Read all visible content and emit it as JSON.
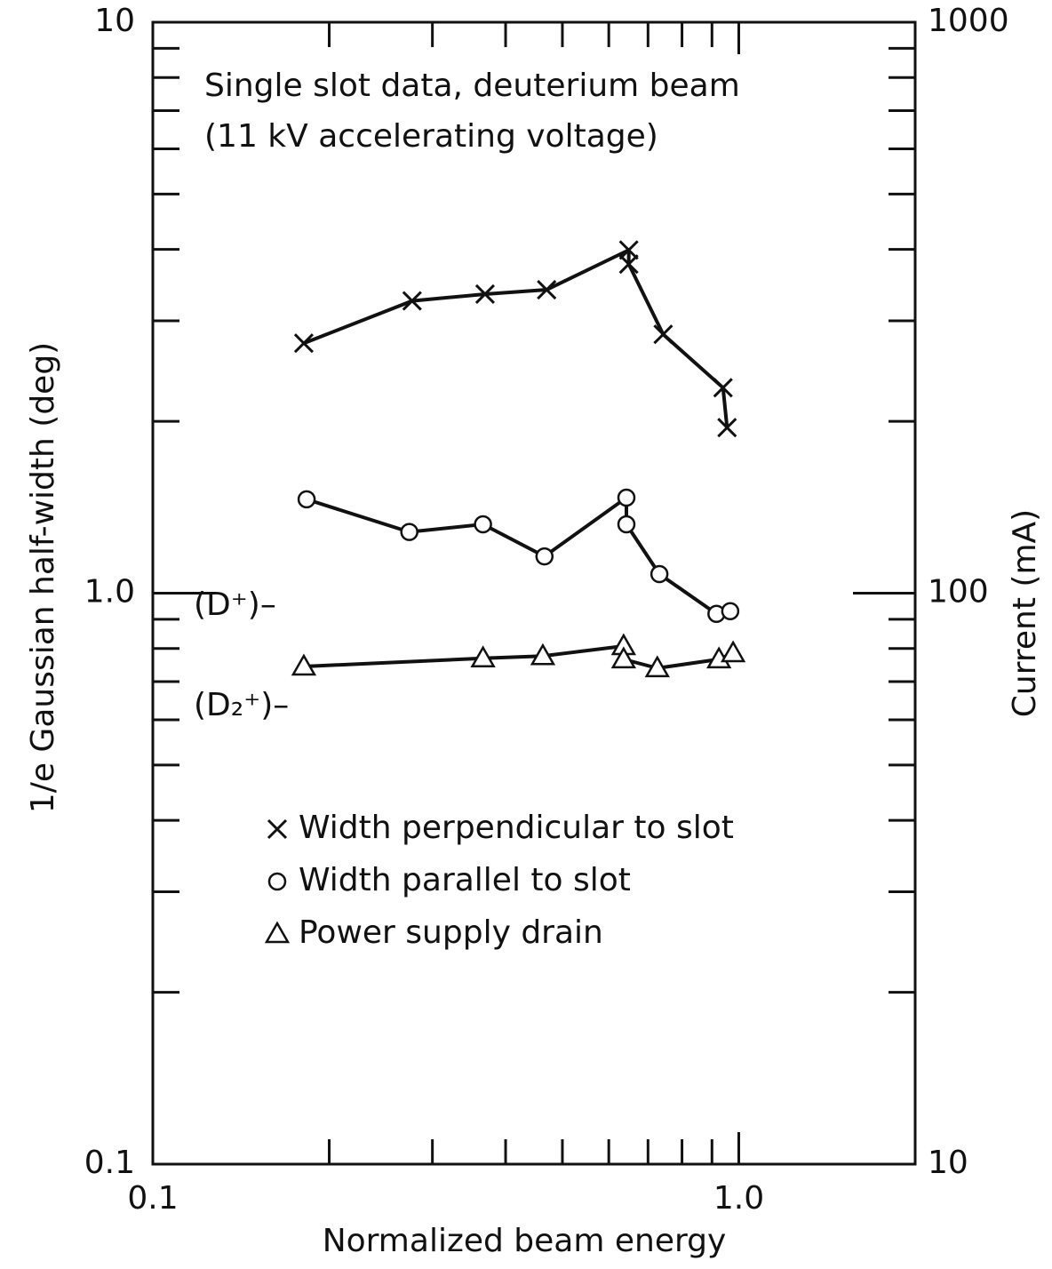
{
  "chart_data": {
    "type": "line",
    "annotations": [
      "Single slot data, deuterium beam",
      "(11 kV accelerating voltage)",
      "(D⁺)–",
      "(D₂⁺)–"
    ],
    "xlabel": "Normalized beam energy",
    "ylabel": "1/e Gaussian half-width (deg)",
    "y2label": "Current (mA)",
    "xscale": "log",
    "yscale": "log",
    "xlim": [
      0.1,
      2
    ],
    "ylim": [
      0.1,
      10
    ],
    "y2lim": [
      10,
      1000
    ],
    "xticks": [
      0.1,
      {
        "value": 1,
        "label": "1.0"
      }
    ],
    "xminorticks": [
      0.2,
      0.3,
      0.4,
      0.5,
      0.6,
      0.7,
      0.8,
      0.9,
      2
    ],
    "yticks": [
      0.1,
      {
        "value": 1,
        "label": "1.0"
      },
      10
    ],
    "yminorticks": [
      0.2,
      0.3,
      0.4,
      0.5,
      0.6,
      0.7,
      0.8,
      0.9,
      2,
      3,
      4,
      5,
      6,
      7,
      8,
      9
    ],
    "y2ticks": [
      10,
      100,
      1000
    ],
    "series": [
      {
        "name": "Width perpendicular to slot",
        "marker": "x",
        "color": "#111",
        "x": [
          0.181,
          0.277,
          0.369,
          0.47,
          0.649,
          0.649,
          0.743,
          0.94,
          0.955
        ],
        "values": [
          2.74,
          3.25,
          3.34,
          3.4,
          3.99,
          3.77,
          2.84,
          2.29,
          1.95
        ]
      },
      {
        "name": "Width parallel to slot",
        "marker": "o",
        "color": "#111",
        "x": [
          0.183,
          0.274,
          0.366,
          0.466,
          0.643,
          0.643,
          0.732,
          0.916,
          0.967
        ],
        "values": [
          1.46,
          1.28,
          1.32,
          1.16,
          1.47,
          1.32,
          1.08,
          0.92,
          0.93
        ]
      },
      {
        "name": "Power supply drain",
        "marker": "^",
        "color": "#111",
        "axis": "y2",
        "x": [
          0.181,
          0.366,
          0.463,
          0.636,
          0.636,
          0.726,
          0.925,
          0.978
        ],
        "values": [
          74.4,
          76.9,
          77.6,
          80.8,
          76.6,
          73.9,
          76.6,
          78.5
        ]
      }
    ]
  }
}
